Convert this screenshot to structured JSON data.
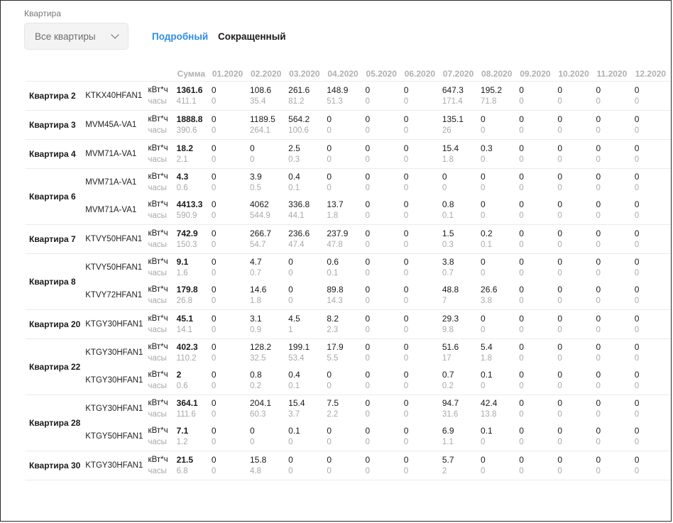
{
  "filter": {
    "label": "Квартира",
    "selected": "Все квартиры"
  },
  "tabs": {
    "detailed": "Подробный",
    "short": "Сокращенный"
  },
  "table": {
    "headers": [
      "Сумма",
      "01.2020",
      "02.2020",
      "03.2020",
      "04.2020",
      "05.2020",
      "06.2020",
      "07.2020",
      "08.2020",
      "09.2020",
      "10.2020",
      "11.2020",
      "12.2020"
    ],
    "unit_kwh": "кВт*ч",
    "unit_hours": "часы",
    "apartments": [
      {
        "name": "Квартира 2",
        "units": [
          {
            "model": "KTKX40HFAN1",
            "sum_kwh": "1361.6",
            "sum_hours": "411.1",
            "kwh": [
              "0",
              "108.6",
              "261.6",
              "148.9",
              "0",
              "0",
              "647.3",
              "195.2",
              "0",
              "0",
              "0",
              "0"
            ],
            "hours": [
              "0",
              "35.4",
              "81.2",
              "51.3",
              "0",
              "0",
              "171.4",
              "71.8",
              "0",
              "0",
              "0",
              "0"
            ]
          }
        ]
      },
      {
        "name": "Квартира 3",
        "units": [
          {
            "model": "MVM45A-VA1",
            "sum_kwh": "1888.8",
            "sum_hours": "390.6",
            "kwh": [
              "0",
              "1189.5",
              "564.2",
              "0",
              "0",
              "0",
              "135.1",
              "0",
              "0",
              "0",
              "0",
              "0"
            ],
            "hours": [
              "0",
              "264.1",
              "100.6",
              "0",
              "0",
              "0",
              "26",
              "0",
              "0",
              "0",
              "0",
              "0"
            ]
          }
        ]
      },
      {
        "name": "Квартира 4",
        "units": [
          {
            "model": "MVM71A-VA1",
            "sum_kwh": "18.2",
            "sum_hours": "2.1",
            "kwh": [
              "0",
              "0",
              "2.5",
              "0",
              "0",
              "0",
              "15.4",
              "0.3",
              "0",
              "0",
              "0",
              "0"
            ],
            "hours": [
              "0",
              "0",
              "0.3",
              "0",
              "0",
              "0",
              "1.8",
              "0",
              "0",
              "0",
              "0",
              "0"
            ]
          }
        ]
      },
      {
        "name": "Квартира 6",
        "units": [
          {
            "model": "MVM71A-VA1",
            "sum_kwh": "4.3",
            "sum_hours": "0.6",
            "kwh": [
              "0",
              "3.9",
              "0.4",
              "0",
              "0",
              "0",
              "0",
              "0",
              "0",
              "0",
              "0",
              "0"
            ],
            "hours": [
              "0",
              "0.5",
              "0.1",
              "0",
              "0",
              "0",
              "0",
              "0",
              "0",
              "0",
              "0",
              "0"
            ]
          },
          {
            "model": "MVM71A-VA1",
            "sum_kwh": "4413.3",
            "sum_hours": "590.9",
            "kwh": [
              "0",
              "4062",
              "336.8",
              "13.7",
              "0",
              "0",
              "0.8",
              "0",
              "0",
              "0",
              "0",
              "0"
            ],
            "hours": [
              "0",
              "544.9",
              "44.1",
              "1.8",
              "0",
              "0",
              "0.1",
              "0",
              "0",
              "0",
              "0",
              "0"
            ]
          }
        ]
      },
      {
        "name": "Квартира 7",
        "units": [
          {
            "model": "KTVY50HFAN1",
            "sum_kwh": "742.9",
            "sum_hours": "150.3",
            "kwh": [
              "0",
              "266.7",
              "236.6",
              "237.9",
              "0",
              "0",
              "1.5",
              "0.2",
              "0",
              "0",
              "0",
              "0"
            ],
            "hours": [
              "0",
              "54.7",
              "47.4",
              "47.8",
              "0",
              "0",
              "0.3",
              "0.1",
              "0",
              "0",
              "0",
              "0"
            ]
          }
        ]
      },
      {
        "name": "Квартира 8",
        "units": [
          {
            "model": "KTVY50HFAN1",
            "sum_kwh": "9.1",
            "sum_hours": "1.6",
            "kwh": [
              "0",
              "4.7",
              "0",
              "0.6",
              "0",
              "0",
              "3.8",
              "0",
              "0",
              "0",
              "0",
              "0"
            ],
            "hours": [
              "0",
              "0.7",
              "0",
              "0.1",
              "0",
              "0",
              "0.7",
              "0",
              "0",
              "0",
              "0",
              "0"
            ]
          },
          {
            "model": "KTVY72HFAN1",
            "sum_kwh": "179.8",
            "sum_hours": "26.8",
            "kwh": [
              "0",
              "14.6",
              "0",
              "89.8",
              "0",
              "0",
              "48.8",
              "26.6",
              "0",
              "0",
              "0",
              "0"
            ],
            "hours": [
              "0",
              "1.8",
              "0",
              "14.3",
              "0",
              "0",
              "7",
              "3.8",
              "0",
              "0",
              "0",
              "0"
            ]
          }
        ]
      },
      {
        "name": "Квартира 20",
        "units": [
          {
            "model": "KTGY30HFAN1",
            "sum_kwh": "45.1",
            "sum_hours": "14.1",
            "kwh": [
              "0",
              "3.1",
              "4.5",
              "8.2",
              "0",
              "0",
              "29.3",
              "0",
              "0",
              "0",
              "0",
              "0"
            ],
            "hours": [
              "0",
              "0.9",
              "1",
              "2.3",
              "0",
              "0",
              "9.8",
              "0",
              "0",
              "0",
              "0",
              "0"
            ]
          }
        ]
      },
      {
        "name": "Квартира 22",
        "units": [
          {
            "model": "KTGY30HFAN1",
            "sum_kwh": "402.3",
            "sum_hours": "110.2",
            "kwh": [
              "0",
              "128.2",
              "199.1",
              "17.9",
              "0",
              "0",
              "51.6",
              "5.4",
              "0",
              "0",
              "0",
              "0"
            ],
            "hours": [
              "0",
              "32.5",
              "53.4",
              "5.5",
              "0",
              "0",
              "17",
              "1.8",
              "0",
              "0",
              "0",
              "0"
            ]
          },
          {
            "model": "KTGY30HFAN1",
            "sum_kwh": "2",
            "sum_hours": "0.6",
            "kwh": [
              "0",
              "0.8",
              "0.4",
              "0",
              "0",
              "0",
              "0.7",
              "0.1",
              "0",
              "0",
              "0",
              "0"
            ],
            "hours": [
              "0",
              "0.2",
              "0.1",
              "0",
              "0",
              "0",
              "0.2",
              "0",
              "0",
              "0",
              "0",
              "0"
            ]
          }
        ]
      },
      {
        "name": "Квартира 28",
        "units": [
          {
            "model": "KTGY30HFAN1",
            "sum_kwh": "364.1",
            "sum_hours": "111.6",
            "kwh": [
              "0",
              "204.1",
              "15.4",
              "7.5",
              "0",
              "0",
              "94.7",
              "42.4",
              "0",
              "0",
              "0",
              "0"
            ],
            "hours": [
              "0",
              "60.3",
              "3.7",
              "2.2",
              "0",
              "0",
              "31.6",
              "13.8",
              "0",
              "0",
              "0",
              "0"
            ]
          },
          {
            "model": "KTGY50HFAN1",
            "sum_kwh": "7.1",
            "sum_hours": "1.2",
            "kwh": [
              "0",
              "0",
              "0.1",
              "0",
              "0",
              "0",
              "6.9",
              "0.1",
              "0",
              "0",
              "0",
              "0"
            ],
            "hours": [
              "0",
              "0",
              "0",
              "0",
              "0",
              "0",
              "1.1",
              "0",
              "0",
              "0",
              "0",
              "0"
            ]
          }
        ]
      },
      {
        "name": "Квартира 30",
        "units": [
          {
            "model": "KTGY30HFAN1",
            "sum_kwh": "21.5",
            "sum_hours": "6.8",
            "kwh": [
              "0",
              "15.8",
              "0",
              "0",
              "0",
              "0",
              "5.7",
              "0",
              "0",
              "0",
              "0",
              "0"
            ],
            "hours": [
              "0",
              "4.8",
              "0",
              "0",
              "0",
              "0",
              "2",
              "0",
              "0",
              "0",
              "0",
              "0"
            ]
          }
        ]
      }
    ]
  }
}
